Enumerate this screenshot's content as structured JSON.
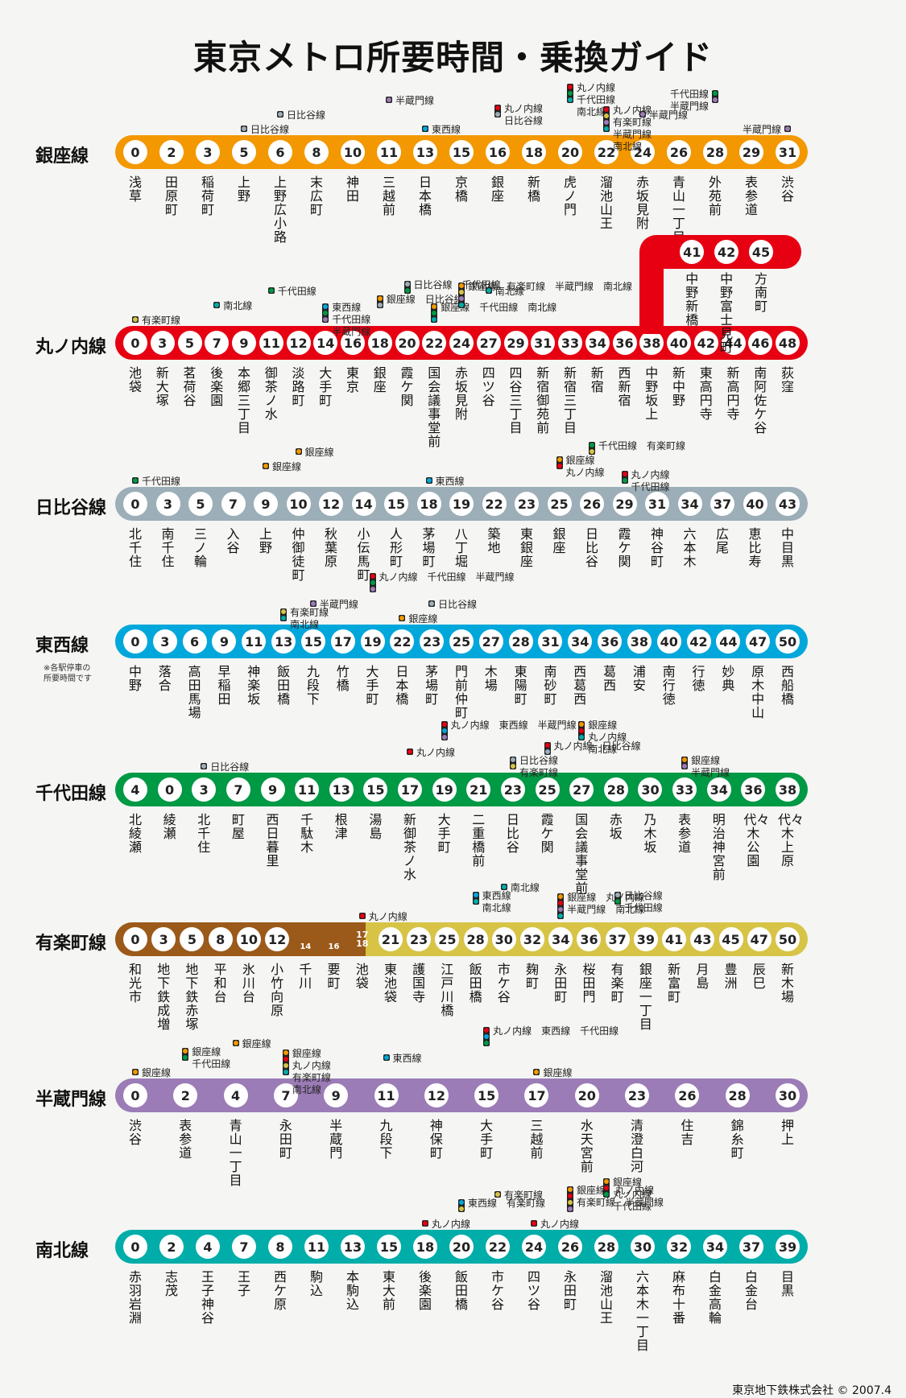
{
  "title": "東京メトロ所要時間・乗換ガイド",
  "colors": {
    "ginza": "#f39800",
    "marunouchi": "#e60012",
    "hibiya": "#9caeb7",
    "tozai": "#00a7db",
    "chiyoda": "#009944",
    "yurakucho": "#d7c447",
    "yurakucho_old": "#9b5a1a",
    "hanzomon": "#9b7cb6",
    "namboku": "#00ada9"
  },
  "lines": [
    {
      "name": "銀座線",
      "color": "#f39800",
      "times": [
        "0",
        "2",
        "3",
        "5",
        "6",
        "8",
        "10",
        "11",
        "13",
        "15",
        "16",
        "18",
        "20",
        "22",
        "24",
        "26",
        "28",
        "29",
        "31"
      ],
      "stations": [
        "浅草",
        "田原町",
        "稲荷町",
        "上野",
        "上野広小路",
        "末広町",
        "神田",
        "三越前",
        "日本橋",
        "京橋",
        "銀座",
        "新橋",
        "虎ノ門",
        "溜池山王",
        "赤坂見附",
        "青山一丁目",
        "外苑前",
        "表参道",
        "渋谷"
      ],
      "transfers": [
        {
          "i": 3,
          "text": "日比谷線",
          "colors": [
            "#9caeb7"
          ]
        },
        {
          "i": 4,
          "text": "日比谷線",
          "colors": [
            "#9caeb7"
          ]
        },
        {
          "i": 7,
          "text": "半蔵門線",
          "colors": [
            "#9b7cb6"
          ]
        },
        {
          "i": 8,
          "text": "東西線",
          "colors": [
            "#00a7db"
          ]
        },
        {
          "i": 10,
          "text": "丸ノ内線\n日比谷線",
          "colors": [
            "#e60012",
            "#9caeb7"
          ]
        },
        {
          "i": 12,
          "text": "丸ノ内線\n千代田線\n南北線",
          "colors": [
            "#e60012",
            "#009944",
            "#00ada9"
          ]
        },
        {
          "i": 13,
          "text": "丸ノ内線\n有楽町線\n半蔵門線\n南北線",
          "colors": [
            "#e60012",
            "#d7c447",
            "#9b7cb6",
            "#00ada9"
          ]
        },
        {
          "i": 14,
          "text": "半蔵門線",
          "colors": [
            "#9b7cb6"
          ]
        },
        {
          "i": 16,
          "text": "千代田線\n半蔵門線",
          "colors": [
            "#009944",
            "#9b7cb6"
          ]
        },
        {
          "i": 18,
          "text": "半蔵門線",
          "colors": [
            "#9b7cb6"
          ]
        }
      ]
    },
    {
      "name": "丸ノ内線",
      "color": "#e60012",
      "times": [
        "0",
        "3",
        "5",
        "7",
        "9",
        "11",
        "12",
        "14",
        "16",
        "18",
        "20",
        "22",
        "24",
        "27",
        "29",
        "31",
        "33",
        "34",
        "36",
        "38",
        "40",
        "42",
        "44",
        "46",
        "48"
      ],
      "stations": [
        "池袋",
        "新大塚",
        "茗荷谷",
        "後楽園",
        "本郷三丁目",
        "御茶ノ水",
        "淡路町",
        "大手町",
        "東京",
        "銀座",
        "霞ケ関",
        "国会議事堂前",
        "赤坂見附",
        "四ツ谷",
        "四谷三丁目",
        "新宿御苑前",
        "新宿三丁目",
        "新宿",
        "西新宿",
        "中野坂上",
        "新中野",
        "東高円寺",
        "新高円寺",
        "南阿佐ケ谷",
        "荻窪"
      ],
      "branch_times": [
        "41",
        "42",
        "45"
      ],
      "branch_stations": [
        "中野新橋",
        "中野富士見町",
        "方南町"
      ],
      "transfers": [
        {
          "i": 0,
          "text": "有楽町線",
          "colors": [
            "#d7c447"
          ]
        },
        {
          "i": 3,
          "text": "南北線",
          "colors": [
            "#00ada9"
          ]
        },
        {
          "i": 5,
          "text": "千代田線",
          "colors": [
            "#009944"
          ]
        },
        {
          "i": 7,
          "text": "東西線\n千代田線\n半蔵門線",
          "colors": [
            "#00a7db",
            "#009944",
            "#9b7cb6"
          ]
        },
        {
          "i": 9,
          "text": "銀座線　日比谷線",
          "colors": [
            "#f39800",
            "#9caeb7"
          ]
        },
        {
          "i": 10,
          "text": "日比谷線　千代田線",
          "colors": [
            "#9caeb7",
            "#009944"
          ]
        },
        {
          "i": 11,
          "text": "銀座線　千代田線　南北線",
          "colors": [
            "#f39800",
            "#009944",
            "#00ada9"
          ]
        },
        {
          "i": 12,
          "text": "銀座線　有楽町線　半蔵門線　南北線",
          "colors": [
            "#f39800",
            "#d7c447",
            "#9b7cb6",
            "#00ada9"
          ]
        },
        {
          "i": 13,
          "text": "南北線",
          "colors": [
            "#00ada9"
          ]
        }
      ]
    },
    {
      "name": "日比谷線",
      "color": "#9caeb7",
      "times": [
        "0",
        "3",
        "5",
        "7",
        "9",
        "10",
        "12",
        "14",
        "15",
        "18",
        "19",
        "22",
        "23",
        "25",
        "26",
        "29",
        "31",
        "34",
        "37",
        "40",
        "43"
      ],
      "stations": [
        "北千住",
        "南千住",
        "三ノ輪",
        "入谷",
        "上野",
        "仲御徒町",
        "秋葉原",
        "小伝馬町",
        "人形町",
        "茅場町",
        "八丁堀",
        "築地",
        "東銀座",
        "銀座",
        "日比谷",
        "霞ケ関",
        "神谷町",
        "六本木",
        "広尾",
        "恵比寿",
        "中目黒"
      ],
      "transfers": [
        {
          "i": 0,
          "text": "千代田線",
          "colors": [
            "#009944"
          ]
        },
        {
          "i": 4,
          "text": "銀座線",
          "colors": [
            "#f39800"
          ]
        },
        {
          "i": 5,
          "text": "銀座線",
          "colors": [
            "#f39800"
          ]
        },
        {
          "i": 9,
          "text": "東西線",
          "colors": [
            "#00a7db"
          ]
        },
        {
          "i": 13,
          "text": "銀座線\n丸ノ内線",
          "colors": [
            "#f39800",
            "#e60012"
          ]
        },
        {
          "i": 14,
          "text": "千代田線　有楽町線",
          "colors": [
            "#009944",
            "#d7c447"
          ]
        },
        {
          "i": 15,
          "text": "丸ノ内線\n千代田線",
          "colors": [
            "#e60012",
            "#009944"
          ]
        }
      ]
    },
    {
      "name": "東西線",
      "color": "#00a7db",
      "times": [
        "0",
        "3",
        "6",
        "9",
        "11",
        "13",
        "15",
        "17",
        "19",
        "22",
        "23",
        "25",
        "27",
        "28",
        "31",
        "34",
        "36",
        "38",
        "40",
        "42",
        "44",
        "47",
        "50"
      ],
      "stations": [
        "中野",
        "落合",
        "高田馬場",
        "早稲田",
        "神楽坂",
        "飯田橋",
        "九段下",
        "竹橋",
        "大手町",
        "日本橋",
        "茅場町",
        "門前仲町",
        "木場",
        "東陽町",
        "南砂町",
        "西葛西",
        "葛西",
        "浦安",
        "南行徳",
        "行徳",
        "妙典",
        "原木中山",
        "西船橋"
      ],
      "transfers": [
        {
          "i": 5,
          "text": "有楽町線\n南北線",
          "colors": [
            "#d7c447",
            "#00ada9"
          ]
        },
        {
          "i": 6,
          "text": "半蔵門線",
          "colors": [
            "#9b7cb6"
          ]
        },
        {
          "i": 8,
          "text": "丸ノ内線　千代田線　半蔵門線",
          "colors": [
            "#e60012",
            "#009944",
            "#9b7cb6"
          ]
        },
        {
          "i": 9,
          "text": "銀座線",
          "colors": [
            "#f39800"
          ]
        },
        {
          "i": 10,
          "text": "日比谷線",
          "colors": [
            "#9caeb7"
          ]
        }
      ]
    },
    {
      "name": "千代田線",
      "color": "#009944",
      "times": [
        "4",
        "0",
        "3",
        "7",
        "9",
        "11",
        "13",
        "15",
        "17",
        "19",
        "21",
        "23",
        "25",
        "27",
        "28",
        "30",
        "33",
        "34",
        "36",
        "38"
      ],
      "stations": [
        "北綾瀬",
        "綾瀬",
        "北千住",
        "町屋",
        "西日暮里",
        "千駄木",
        "根津",
        "湯島",
        "新御茶ノ水",
        "大手町",
        "二重橋前",
        "日比谷",
        "霞ケ関",
        "国会議事堂前",
        "赤坂",
        "乃木坂",
        "表参道",
        "明治神宮前",
        "代々木公園",
        "代々木上原"
      ],
      "transfers": [
        {
          "i": 2,
          "text": "日比谷線",
          "colors": [
            "#9caeb7"
          ]
        },
        {
          "i": 8,
          "text": "丸ノ内線",
          "colors": [
            "#e60012"
          ]
        },
        {
          "i": 9,
          "text": "丸ノ内線　東西線　半蔵門線",
          "colors": [
            "#e60012",
            "#00a7db",
            "#9b7cb6"
          ]
        },
        {
          "i": 11,
          "text": "日比谷線\n有楽町線",
          "colors": [
            "#9caeb7",
            "#d7c447"
          ]
        },
        {
          "i": 12,
          "text": "丸ノ内線　日比谷線",
          "colors": [
            "#e60012",
            "#9caeb7"
          ]
        },
        {
          "i": 13,
          "text": "銀座線\n丸ノ内線\n南北線",
          "colors": [
            "#f39800",
            "#e60012",
            "#00ada9"
          ]
        },
        {
          "i": 16,
          "text": "銀座線\n半蔵門線",
          "colors": [
            "#f39800",
            "#9b7cb6"
          ]
        }
      ]
    },
    {
      "name": "有楽町線",
      "color": "#d7c447",
      "times": [
        "0",
        "3",
        "5",
        "8",
        "10",
        "12",
        "14",
        "16",
        "17/18",
        "21",
        "23",
        "25",
        "28",
        "30",
        "32",
        "34",
        "36",
        "37",
        "39",
        "41",
        "43",
        "45",
        "47",
        "50"
      ],
      "stations": [
        "和光市",
        "地下鉄成増",
        "地下鉄赤塚",
        "平和台",
        "氷川台",
        "小竹向原",
        "千川",
        "要町",
        "池袋",
        "東池袋",
        "護国寺",
        "江戸川橋",
        "飯田橋",
        "市ケ谷",
        "麹町",
        "永田町",
        "桜田門",
        "有楽町",
        "銀座一丁目",
        "新富町",
        "月島",
        "豊洲",
        "辰巳",
        "新木場"
      ],
      "transfers": [
        {
          "i": 8,
          "text": "丸ノ内線",
          "colors": [
            "#e60012"
          ]
        },
        {
          "i": 12,
          "text": "東西線\n南北線",
          "colors": [
            "#00a7db",
            "#00ada9"
          ]
        },
        {
          "i": 13,
          "text": "南北線",
          "colors": [
            "#00ada9"
          ]
        },
        {
          "i": 15,
          "text": "銀座線　丸ノ内線\n半蔵門線　南北線",
          "colors": [
            "#f39800",
            "#e60012",
            "#9b7cb6",
            "#00ada9"
          ]
        },
        {
          "i": 17,
          "text": "日比谷線\n千代田線",
          "colors": [
            "#9caeb7",
            "#009944"
          ]
        }
      ]
    },
    {
      "name": "半蔵門線",
      "color": "#9b7cb6",
      "times": [
        "0",
        "2",
        "4",
        "7",
        "9",
        "11",
        "12",
        "15",
        "17",
        "20",
        "23",
        "26",
        "28",
        "30"
      ],
      "stations": [
        "渋谷",
        "表参道",
        "青山一丁目",
        "永田町",
        "半蔵門",
        "九段下",
        "神保町",
        "大手町",
        "三越前",
        "水天宮前",
        "清澄白河",
        "住吉",
        "錦糸町",
        "押上"
      ],
      "transfers": [
        {
          "i": 0,
          "text": "銀座線",
          "colors": [
            "#f39800"
          ]
        },
        {
          "i": 1,
          "text": "銀座線\n千代田線",
          "colors": [
            "#f39800",
            "#009944"
          ]
        },
        {
          "i": 2,
          "text": "銀座線",
          "colors": [
            "#f39800"
          ]
        },
        {
          "i": 3,
          "text": "銀座線\n丸ノ内線\n有楽町線\n南北線",
          "colors": [
            "#f39800",
            "#e60012",
            "#d7c447",
            "#00ada9"
          ]
        },
        {
          "i": 5,
          "text": "東西線",
          "colors": [
            "#00a7db"
          ]
        },
        {
          "i": 7,
          "text": "丸ノ内線　東西線　千代田線",
          "colors": [
            "#e60012",
            "#00a7db",
            "#009944"
          ]
        },
        {
          "i": 8,
          "text": "銀座線",
          "colors": [
            "#f39800"
          ]
        }
      ]
    },
    {
      "name": "南北線",
      "color": "#00ada9",
      "times": [
        "0",
        "2",
        "4",
        "7",
        "8",
        "11",
        "13",
        "15",
        "18",
        "20",
        "22",
        "24",
        "26",
        "28",
        "30",
        "32",
        "34",
        "37",
        "39"
      ],
      "stations": [
        "赤羽岩淵",
        "志茂",
        "王子神谷",
        "王子",
        "西ケ原",
        "駒込",
        "本駒込",
        "東大前",
        "後楽園",
        "飯田橋",
        "市ケ谷",
        "四ツ谷",
        "永田町",
        "溜池山王",
        "六本木一丁目",
        "麻布十番",
        "白金高輪",
        "白金台",
        "目黒"
      ],
      "transfers": [
        {
          "i": 8,
          "text": "丸ノ内線",
          "colors": [
            "#e60012"
          ]
        },
        {
          "i": 9,
          "text": "東西線　有楽町線",
          "colors": [
            "#00a7db",
            "#d7c447"
          ]
        },
        {
          "i": 10,
          "text": "有楽町線",
          "colors": [
            "#d7c447"
          ]
        },
        {
          "i": 11,
          "text": "丸ノ内線",
          "colors": [
            "#e60012"
          ]
        },
        {
          "i": 12,
          "text": "銀座線　丸ノ内線\n有楽町線　半蔵門線",
          "colors": [
            "#f39800",
            "#e60012",
            "#d7c447",
            "#9b7cb6"
          ]
        },
        {
          "i": 13,
          "text": "銀座線\n丸ノ内線\n千代田線",
          "colors": [
            "#f39800",
            "#e60012",
            "#009944"
          ]
        }
      ]
    }
  ],
  "note": "※各駅停車の\n所要時間です",
  "footer": "東京地下鉄株式会社 © 2007.4"
}
